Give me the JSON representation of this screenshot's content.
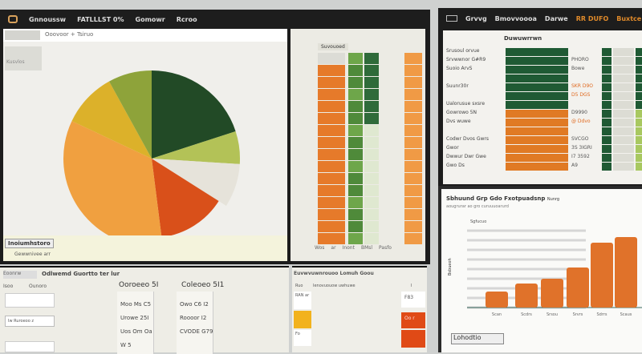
{
  "left_window": {
    "menu": [
      "Gnnoussw",
      "FATLLLST 0%",
      "Gomowr",
      "Rcroo"
    ],
    "breadcrumb": "Ooovoor + Tsiruo",
    "side_label": "Kusvlos",
    "pie_caption_button": "Inoiumhstoro",
    "pie_caption": "Gewwnivee arr",
    "table_header": "Suvouoed",
    "table_footer": [
      "Wos",
      "ar",
      "Inont",
      "BMsl",
      "Pasfo"
    ]
  },
  "right_top_window": {
    "menu": [
      "Grvvg",
      "Bmovvoooa",
      "Darwe",
      "RR DUFO",
      "Buxtce"
    ],
    "accent": "#e08a2a",
    "header": "Duwuwrrwn",
    "rows": [
      {
        "label": "Srusoul orvue",
        "value": ""
      },
      {
        "label": "Srvwwnor G#R9",
        "value": "PHORO"
      },
      {
        "label": "Suoio ArvS",
        "value": "Bowe"
      },
      {
        "label": "",
        "value": ""
      },
      {
        "label": "Suunr30r",
        "value": "SKR D9O"
      },
      {
        "label": "",
        "value": "D5 DGS"
      },
      {
        "label": "Ualorusue sxsre",
        "value": ""
      },
      {
        "label": "Gowrowo 5N",
        "value": "D9990"
      },
      {
        "label": "Dvs wuwe",
        "value": "@ Ddvo"
      },
      {
        "label": "",
        "value": ""
      },
      {
        "label": "Codwr Dvos Gwrs",
        "value": "SVCGO"
      },
      {
        "label": "Gwor",
        "value": "3S 3IGRI"
      },
      {
        "label": "Dwwur Dwr Gwe",
        "value": "I7 3592"
      },
      {
        "label": "Gwo Ds",
        "value": "A9"
      }
    ]
  },
  "bottom_left": {
    "tab": "Eoonrw",
    "title": "Odlwemd Guortto ter lur",
    "col_labels": [
      "Isoo",
      "Ounoro"
    ],
    "col1_header": "Ooroeeo 5I",
    "col2_header": "Coleoeo 5I1",
    "col1_values": [
      "Moo Ms C5",
      "Urowe 25I",
      "Uos Om Oa",
      "W 5"
    ],
    "col2_values": [
      "Owo C6 I2",
      "Roooor I2",
      "CVODE G79",
      ""
    ],
    "side_item": "Iw Ruroeoo z"
  },
  "bottom_mid": {
    "title": "Euvwvuwnrouoo Lomuh Goou",
    "col_headers": [
      "Ruo",
      "Ienovuouow uwhuwe",
      "I"
    ],
    "row_labels": [
      "RAN ar",
      "",
      "Fo"
    ],
    "right_values": [
      "F83",
      "Oo r",
      ""
    ],
    "colors": {
      "yellow": "#f2b21d",
      "red": "#e04a16"
    }
  },
  "bottom_right_chart": {
    "title": "Sbhuund Grp Gdo Fxotpuadsnp",
    "title_suffix": "Nunrg",
    "subtitle": "aougrurar ao gro curuuuoarurd",
    "footer_button": "Lohodtio",
    "chart_data": {
      "type": "bar",
      "categories": [
        "Scan",
        "Scdrs",
        "Srsou",
        "Srvrs",
        "Sdrrs",
        "Scaus"
      ],
      "values": [
        2.0,
        3.0,
        3.6,
        5.0,
        8.1,
        8.8
      ],
      "ylabel": "Bsbueoh",
      "legend_label": "Sgfucuo",
      "ylim": [
        0,
        10
      ],
      "grid": true,
      "color": "#e0722a"
    }
  },
  "pie_chart": {
    "type": "pie",
    "slices": [
      {
        "color": "#224a26",
        "value": 20
      },
      {
        "color": "#b3c257",
        "value": 6
      },
      {
        "color": "#e6e3da",
        "value": 8
      },
      {
        "color": "#d9501a",
        "value": 14
      },
      {
        "color": "#f0a040",
        "value": 34
      },
      {
        "color": "#dcb12a",
        "value": 10
      },
      {
        "color": "#8ea33a",
        "value": 8
      }
    ]
  }
}
